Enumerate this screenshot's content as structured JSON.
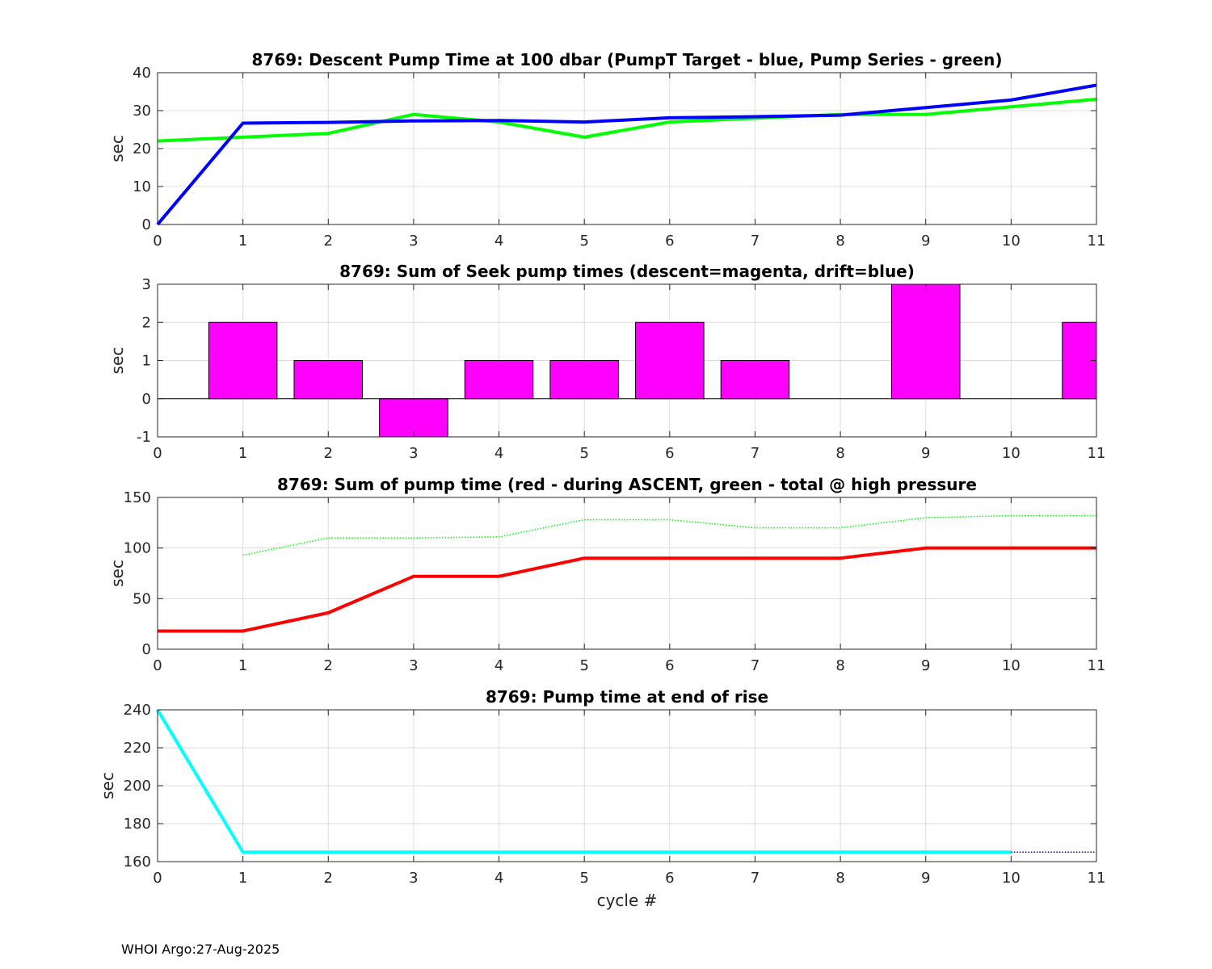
{
  "footer": "WHOI Argo:27-Aug-2025",
  "chart_data": [
    {
      "type": "line",
      "title": "8769: Descent Pump Time at 100 dbar (PumpT Target - blue, Pump Series - green)",
      "xlabel": "",
      "ylabel": "sec",
      "xlim": [
        0,
        11
      ],
      "ylim": [
        0,
        40
      ],
      "xticks": [
        0,
        1,
        2,
        3,
        4,
        5,
        6,
        7,
        8,
        9,
        10,
        11
      ],
      "yticks": [
        0,
        10,
        20,
        30,
        40
      ],
      "grid": true,
      "series": [
        {
          "color": "#00ff00",
          "style": "solid",
          "width": 4,
          "x": [
            0,
            1,
            2,
            3,
            4,
            5,
            6,
            7,
            8,
            9,
            10,
            11
          ],
          "y": [
            22,
            23,
            24,
            29,
            27,
            23,
            27,
            28,
            29,
            29,
            31,
            33
          ]
        },
        {
          "color": "#0000ff",
          "style": "solid",
          "width": 4,
          "x": [
            0,
            1,
            2,
            3,
            4,
            5,
            6,
            7,
            8,
            9,
            10,
            11
          ],
          "y": [
            0,
            26.7,
            26.9,
            27.3,
            27.4,
            27.0,
            28.1,
            28.4,
            28.8,
            30.8,
            32.8,
            36.7
          ]
        }
      ]
    },
    {
      "type": "bar",
      "title": "8769: Sum of Seek pump times (descent=magenta, drift=blue)",
      "xlabel": "",
      "ylabel": "sec",
      "xlim": [
        0,
        11
      ],
      "ylim": [
        -1,
        3
      ],
      "xticks": [
        0,
        1,
        2,
        3,
        4,
        5,
        6,
        7,
        8,
        9,
        10,
        11
      ],
      "yticks": [
        -1,
        0,
        1,
        2,
        3
      ],
      "grid": true,
      "bar_color": "#ff00ff",
      "bar_width": 0.8,
      "series": [
        {
          "x": [
            1,
            2,
            3,
            4,
            5,
            6,
            7,
            8,
            9,
            10,
            11
          ],
          "values": [
            2,
            1,
            -1,
            1,
            1,
            2,
            1,
            0,
            3,
            0,
            2
          ]
        }
      ]
    },
    {
      "type": "line",
      "title": "8769: Sum of pump time (red - during ASCENT, green - total @ high pressure",
      "xlabel": "",
      "ylabel": "sec",
      "xlim": [
        0,
        11
      ],
      "ylim": [
        0,
        150
      ],
      "xticks": [
        0,
        1,
        2,
        3,
        4,
        5,
        6,
        7,
        8,
        9,
        10,
        11
      ],
      "yticks": [
        0,
        50,
        100,
        150
      ],
      "grid": true,
      "series": [
        {
          "color": "#00ff00",
          "style": "dotted",
          "width": 1.5,
          "x": [
            1,
            2,
            3,
            4,
            5,
            6,
            7,
            8,
            9,
            10,
            11
          ],
          "y": [
            93,
            110,
            110,
            111,
            128,
            128,
            120,
            120,
            130,
            132,
            132
          ]
        },
        {
          "color": "#ff0000",
          "style": "solid",
          "width": 4,
          "x": [
            0,
            1,
            2,
            3,
            4,
            5,
            6,
            7,
            8,
            9,
            10,
            11
          ],
          "y": [
            18,
            18,
            36,
            72,
            72,
            90,
            90,
            90,
            90,
            100,
            100,
            100
          ]
        }
      ]
    },
    {
      "type": "line",
      "title": "8769: Pump time at end of rise",
      "xlabel": "cycle #",
      "ylabel": "sec",
      "xlim": [
        0,
        11
      ],
      "ylim": [
        160,
        240
      ],
      "xticks": [
        0,
        1,
        2,
        3,
        4,
        5,
        6,
        7,
        8,
        9,
        10,
        11
      ],
      "yticks": [
        160,
        180,
        200,
        220,
        240
      ],
      "grid": true,
      "series": [
        {
          "color": "#00ffff",
          "style": "solid",
          "width": 4,
          "x": [
            0,
            1,
            2,
            3,
            4,
            5,
            6,
            7,
            8,
            9,
            10
          ],
          "y": [
            240,
            165,
            165,
            165,
            165,
            165,
            165,
            165,
            165,
            165,
            165
          ]
        },
        {
          "color": "#00008b",
          "style": "dotted",
          "width": 1.5,
          "x": [
            10,
            11
          ],
          "y": [
            165,
            165
          ]
        }
      ]
    }
  ]
}
